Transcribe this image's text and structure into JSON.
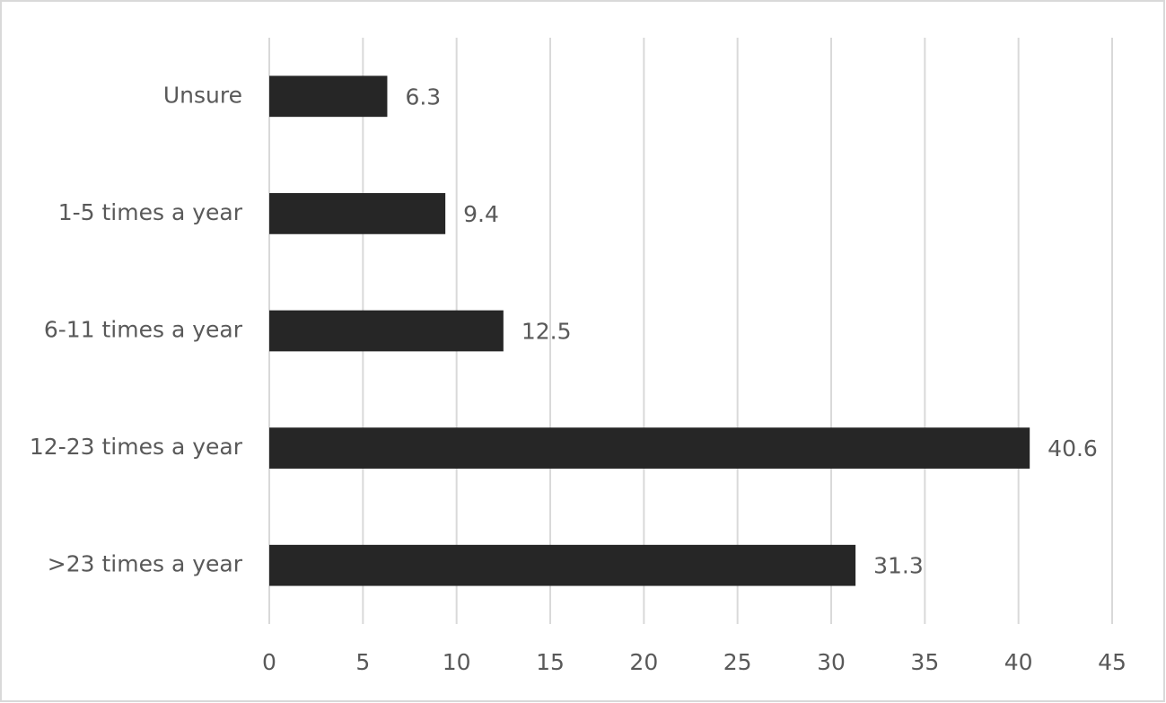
{
  "chart_data": {
    "type": "bar",
    "orientation": "horizontal",
    "categories": [
      "Unsure",
      "1-5 times a year",
      "6-11 times a year",
      "12-23 times a year",
      ">23 times a year"
    ],
    "values": [
      6.3,
      9.4,
      12.5,
      40.6,
      31.3
    ],
    "color": "#262626",
    "xlim": [
      0,
      45
    ],
    "xticks": [
      0,
      5,
      10,
      15,
      20,
      25,
      30,
      35,
      40,
      45
    ],
    "grid": true
  }
}
